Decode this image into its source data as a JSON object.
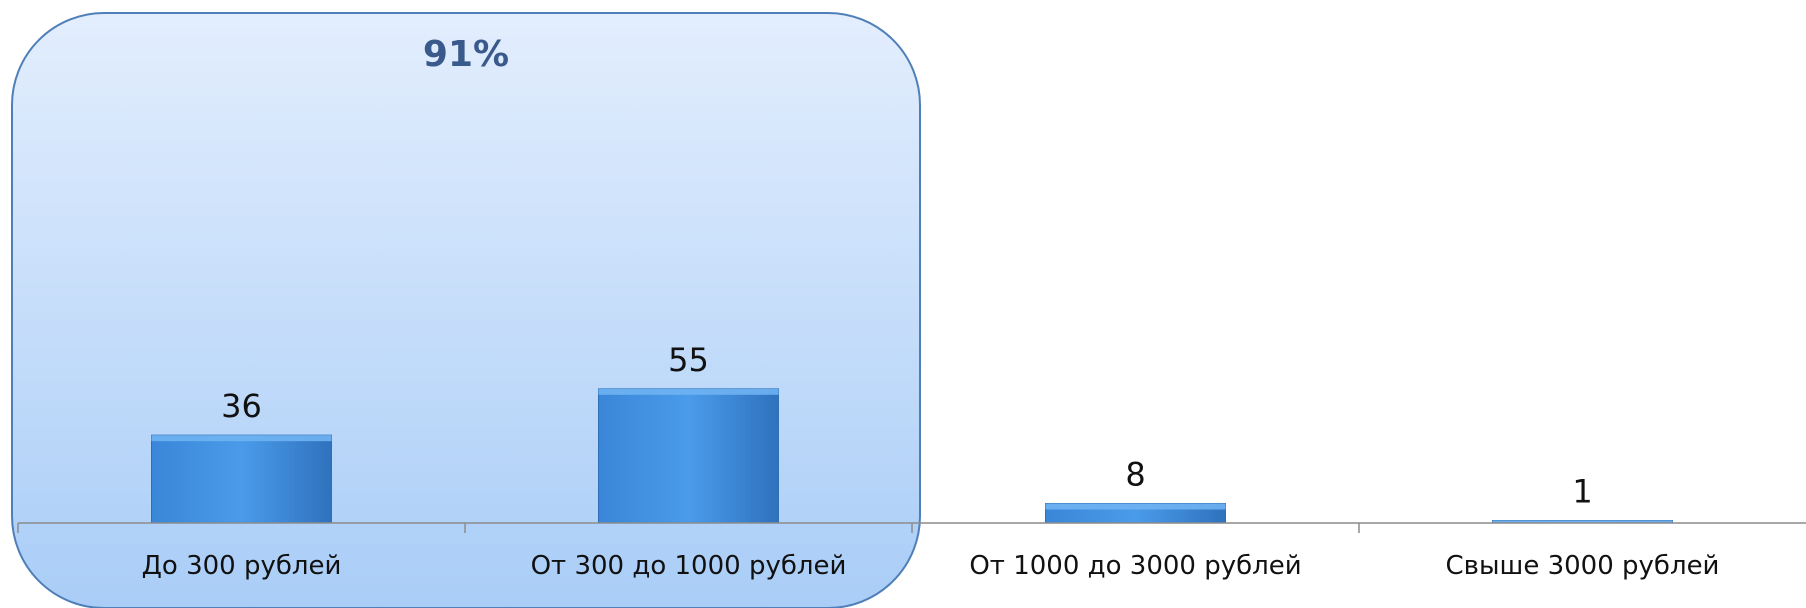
{
  "chart_data": {
    "type": "bar",
    "categories": [
      "До 300 рублей",
      "От 300 до 1000 рублей",
      "От 1000 до 3000 рублей",
      "Свыше 3000 рублей"
    ],
    "values": [
      36,
      55,
      8,
      1
    ],
    "data_labels": [
      "36",
      "55",
      "8",
      "1"
    ],
    "ylim": [
      0,
      60
    ],
    "grid": false,
    "legend": "none",
    "highlight": {
      "label": "91%",
      "categories": [
        "До 300 рублей",
        "От 300 до 1000 рублей"
      ]
    },
    "colors": {
      "bar": "#3d8fe0",
      "bar_dark": "#2f6fb3",
      "highlight_fill_top": "#e3eefd",
      "highlight_fill_bottom": "#a9cdf7",
      "highlight_border": "#4f7fb8",
      "axis": "#8c8c8c"
    }
  }
}
